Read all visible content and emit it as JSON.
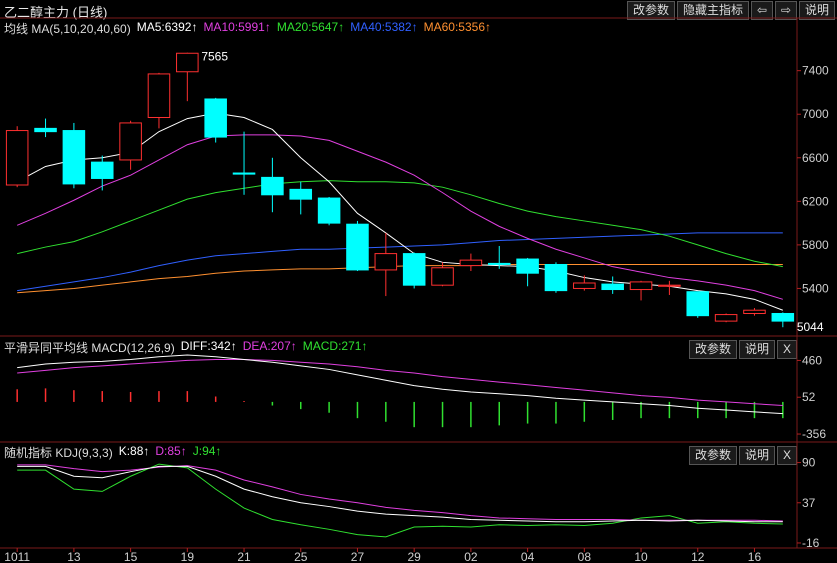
{
  "app": {
    "title": "乙二醇主力 (日线)",
    "buttons": {
      "params": "改参数",
      "hide_main": "隐藏主指标",
      "left_arrow": "⇦",
      "right_arrow": "⇨",
      "help": "说明",
      "close": "X"
    }
  },
  "main_legend": {
    "label": "均线 MA(5,10,20,40,60)",
    "items": [
      {
        "text": "MA5:6392↑",
        "color": "#ffffff"
      },
      {
        "text": "MA10:5991↑",
        "color": "#e040e0"
      },
      {
        "text": "MA20:5647↑",
        "color": "#30e030"
      },
      {
        "text": "MA40:5382↑",
        "color": "#3060ff"
      },
      {
        "text": "MA60:5356↑",
        "color": "#ff9030"
      }
    ]
  },
  "macd_legend": {
    "label": "平滑异同平均线 MACD(12,26,9)",
    "items": [
      {
        "text": "DIFF:342↑",
        "color": "#ffffff"
      },
      {
        "text": "DEA:207↑",
        "color": "#e040e0"
      },
      {
        "text": "MACD:271↑",
        "color": "#30e030"
      }
    ]
  },
  "kdj_legend": {
    "label": "随机指标 KDJ(9,3,3)",
    "items": [
      {
        "text": "K:88↑",
        "color": "#ffffff"
      },
      {
        "text": "D:85↑",
        "color": "#e040e0"
      },
      {
        "text": "J:94↑",
        "color": "#30e030"
      }
    ]
  },
  "chart_data": [
    {
      "type": "candlestick",
      "title": "乙二醇主力 (日线)",
      "ylim": [
        5000,
        7700
      ],
      "yticks": [
        5400,
        5800,
        6200,
        6600,
        7000,
        7400
      ],
      "x_tick_labels": [
        "1011",
        "13",
        "15",
        "19",
        "21",
        "25",
        "27",
        "29",
        "02",
        "04",
        "08",
        "10",
        "12",
        "16"
      ],
      "x_tick_index": [
        0,
        2,
        4,
        6,
        8,
        10,
        12,
        14,
        16,
        18,
        20,
        22,
        24,
        26
      ],
      "candles": [
        {
          "o": 6350,
          "h": 6890,
          "l": 6330,
          "c": 6850
        },
        {
          "o": 6870,
          "h": 6960,
          "l": 6790,
          "c": 6840
        },
        {
          "o": 6850,
          "h": 6920,
          "l": 6320,
          "c": 6360
        },
        {
          "o": 6560,
          "h": 6620,
          "l": 6300,
          "c": 6410
        },
        {
          "o": 6580,
          "h": 6940,
          "l": 6490,
          "c": 6920
        },
        {
          "o": 6970,
          "h": 7380,
          "l": 6870,
          "c": 7370
        },
        {
          "o": 7390,
          "h": 7565,
          "l": 7120,
          "c": 7560
        },
        {
          "o": 7140,
          "h": 7150,
          "l": 6740,
          "c": 6790
        },
        {
          "o": 6460,
          "h": 6840,
          "l": 6260,
          "c": 6450
        },
        {
          "o": 6420,
          "h": 6600,
          "l": 6100,
          "c": 6260
        },
        {
          "o": 6310,
          "h": 6380,
          "l": 6080,
          "c": 6220
        },
        {
          "o": 6230,
          "h": 6240,
          "l": 5980,
          "c": 6000
        },
        {
          "o": 5990,
          "h": 6020,
          "l": 5560,
          "c": 5570
        },
        {
          "o": 5570,
          "h": 5910,
          "l": 5330,
          "c": 5720
        },
        {
          "o": 5720,
          "h": 5730,
          "l": 5400,
          "c": 5430
        },
        {
          "o": 5430,
          "h": 5640,
          "l": 5420,
          "c": 5590
        },
        {
          "o": 5610,
          "h": 5720,
          "l": 5560,
          "c": 5660
        },
        {
          "o": 5630,
          "h": 5790,
          "l": 5580,
          "c": 5620
        },
        {
          "o": 5670,
          "h": 5680,
          "l": 5420,
          "c": 5540
        },
        {
          "o": 5620,
          "h": 5640,
          "l": 5360,
          "c": 5380
        },
        {
          "o": 5400,
          "h": 5520,
          "l": 5380,
          "c": 5450
        },
        {
          "o": 5440,
          "h": 5510,
          "l": 5350,
          "c": 5390
        },
        {
          "o": 5390,
          "h": 5470,
          "l": 5290,
          "c": 5460
        },
        {
          "o": 5420,
          "h": 5470,
          "l": 5340,
          "c": 5430
        },
        {
          "o": 5370,
          "h": 5370,
          "l": 5130,
          "c": 5150
        },
        {
          "o": 5100,
          "h": 5170,
          "l": 5090,
          "c": 5160
        },
        {
          "o": 5170,
          "h": 5220,
          "l": 5150,
          "c": 5200
        },
        {
          "o": 5170,
          "h": 5180,
          "l": 5044,
          "c": 5100
        }
      ],
      "series": [
        {
          "name": "MA5",
          "color": "#ffffff",
          "values": [
            6380,
            6520,
            6580,
            6600,
            6650,
            6840,
            6960,
            7010,
            6970,
            6860,
            6600,
            6380,
            6090,
            5910,
            5720,
            5640,
            5620,
            5610,
            5600,
            5560,
            5500,
            5460,
            5440,
            5420,
            5380,
            5350,
            5300,
            5200
          ]
        },
        {
          "name": "MA10",
          "color": "#e040e0",
          "values": [
            5980,
            6090,
            6210,
            6340,
            6440,
            6580,
            6720,
            6800,
            6810,
            6810,
            6800,
            6760,
            6660,
            6560,
            6440,
            6280,
            6110,
            5970,
            5860,
            5760,
            5680,
            5600,
            5550,
            5500,
            5470,
            5430,
            5380,
            5300
          ]
        },
        {
          "name": "MA20",
          "color": "#30e030",
          "values": [
            5720,
            5780,
            5830,
            5920,
            6020,
            6120,
            6220,
            6280,
            6320,
            6360,
            6380,
            6390,
            6380,
            6380,
            6370,
            6330,
            6260,
            6180,
            6110,
            6060,
            6020,
            5980,
            5940,
            5880,
            5800,
            5720,
            5650,
            5600
          ]
        },
        {
          "name": "MA40",
          "color": "#3060ff",
          "values": [
            5380,
            5420,
            5460,
            5500,
            5550,
            5610,
            5660,
            5700,
            5720,
            5740,
            5760,
            5760,
            5770,
            5780,
            5790,
            5800,
            5820,
            5840,
            5850,
            5860,
            5870,
            5880,
            5890,
            5900,
            5910,
            5910,
            5910,
            5910
          ]
        },
        {
          "name": "MA60",
          "color": "#ff9030",
          "values": [
            5360,
            5380,
            5400,
            5430,
            5460,
            5490,
            5510,
            5540,
            5560,
            5570,
            5580,
            5580,
            5590,
            5600,
            5610,
            5610,
            5610,
            5620,
            5620,
            5620,
            5620,
            5620,
            5620,
            5620,
            5620,
            5620,
            5620,
            5620
          ]
        }
      ],
      "annotations": [
        {
          "index": 6,
          "value": 7565,
          "label": "7565"
        },
        {
          "index": 27,
          "value": 5044,
          "label": "5044"
        }
      ]
    },
    {
      "type": "bar",
      "title": "MACD(12,26,9)",
      "ylim": [
        -400,
        520
      ],
      "yticks": [
        460,
        52,
        -356
      ],
      "series": [
        {
          "name": "DIFF",
          "color": "#ffffff",
          "values": [
            380,
            420,
            440,
            450,
            470,
            500,
            520,
            500,
            470,
            440,
            400,
            360,
            300,
            240,
            180,
            140,
            110,
            90,
            70,
            40,
            20,
            0,
            -20,
            -40,
            -70,
            -90,
            -110,
            -130
          ]
        },
        {
          "name": "DEA",
          "color": "#e040e0",
          "values": [
            320,
            350,
            380,
            400,
            420,
            440,
            460,
            470,
            470,
            460,
            440,
            420,
            390,
            350,
            320,
            280,
            250,
            220,
            190,
            160,
            130,
            100,
            70,
            50,
            20,
            0,
            -20,
            -40
          ]
        },
        {
          "name": "MACD",
          "color": "#30e030",
          "values": [
            140,
            150,
            130,
            120,
            110,
            120,
            120,
            60,
            10,
            -40,
            -80,
            -120,
            -180,
            -220,
            -280,
            -280,
            -280,
            -260,
            -240,
            -240,
            -220,
            -200,
            -180,
            -180,
            -180,
            -180,
            -180,
            -180
          ]
        }
      ]
    },
    {
      "type": "line",
      "title": "KDJ(9,3,3)",
      "ylim": [
        -20,
        100
      ],
      "yticks": [
        90,
        37,
        -16
      ],
      "series": [
        {
          "name": "K",
          "color": "#ffffff",
          "values": [
            85,
            85,
            72,
            70,
            78,
            85,
            85,
            72,
            55,
            45,
            37,
            32,
            26,
            22,
            20,
            18,
            15,
            14,
            13,
            12,
            12,
            13,
            14,
            13,
            14,
            13,
            12,
            12
          ]
        },
        {
          "name": "D",
          "color": "#e040e0",
          "values": [
            87,
            87,
            82,
            78,
            80,
            84,
            86,
            80,
            67,
            58,
            48,
            42,
            37,
            31,
            27,
            24,
            20,
            17,
            16,
            15,
            15,
            15,
            14,
            14,
            14,
            14,
            14,
            13
          ]
        },
        {
          "name": "J",
          "color": "#30e030",
          "values": [
            80,
            80,
            55,
            52,
            72,
            88,
            83,
            55,
            30,
            15,
            8,
            2,
            -5,
            -8,
            5,
            6,
            5,
            8,
            7,
            8,
            7,
            10,
            17,
            20,
            10,
            12,
            10,
            9
          ]
        }
      ]
    }
  ]
}
